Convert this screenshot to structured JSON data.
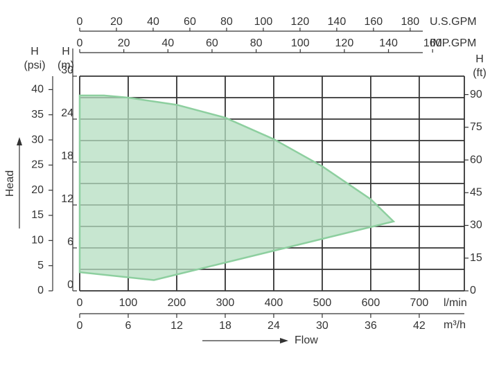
{
  "chart_data": {
    "type": "area",
    "x_label": "Flow",
    "y_label": "Head",
    "x_unit": "l/min",
    "xlim": [
      0,
      793
    ],
    "xticks": [
      0,
      100,
      200,
      300,
      400,
      500,
      600,
      700
    ],
    "y_label_lines": [
      "H",
      "(m)"
    ],
    "ylim": [
      0,
      30
    ],
    "yticks": [
      0,
      6,
      12,
      18,
      24,
      30
    ],
    "ygrid": [
      0,
      3,
      6,
      9,
      12,
      15,
      18,
      21,
      24,
      27,
      30
    ],
    "grid": true,
    "top_axes": [
      {
        "unit": "U.S.GPM",
        "lim": [
          0,
          209.5
        ],
        "ticks": [
          0,
          20,
          40,
          60,
          80,
          100,
          120,
          140,
          160,
          180
        ]
      },
      {
        "unit": "IMP.GPM",
        "lim": [
          0,
          174.4
        ],
        "ticks": [
          0,
          20,
          40,
          60,
          80,
          100,
          120,
          140,
          160
        ]
      }
    ],
    "bottom_axis2": {
      "unit": "m³/h",
      "lim": [
        0,
        47.58
      ],
      "ticks": [
        0,
        6,
        12,
        18,
        24,
        30,
        36,
        42
      ]
    },
    "left_axis2": {
      "label_lines": [
        "H",
        "(psi)"
      ],
      "lim": [
        0,
        42.67
      ],
      "ticks": [
        0,
        5,
        10,
        15,
        20,
        25,
        30,
        35,
        40
      ]
    },
    "right_axis": {
      "label_lines": [
        "H",
        "(ft)"
      ],
      "lim": [
        0,
        98.43
      ],
      "ticks": [
        0,
        15,
        30,
        45,
        60,
        75,
        90
      ]
    },
    "series": [
      {
        "color": "#b4dec0",
        "x": [
          0,
          50,
          100,
          200,
          300,
          400,
          500,
          600,
          647,
          400,
          153,
          0
        ],
        "values": [
          27.3,
          27.3,
          27,
          26,
          24.2,
          21.2,
          17.4,
          12.8,
          9.7,
          5.6,
          1.5,
          2.6
        ]
      }
    ]
  }
}
